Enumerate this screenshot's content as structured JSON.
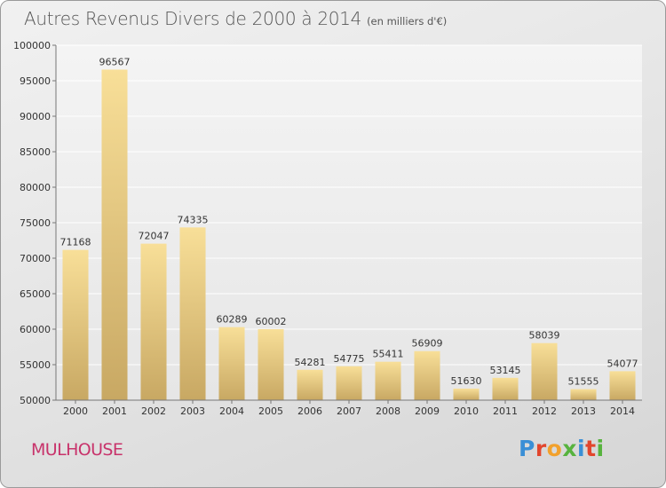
{
  "chart_data": {
    "type": "bar",
    "title": "Autres Revenus Divers de 2000 à 2014",
    "unit": "(en milliers d'€)",
    "categories": [
      "2000",
      "2001",
      "2002",
      "2003",
      "2004",
      "2005",
      "2006",
      "2007",
      "2008",
      "2009",
      "2010",
      "2011",
      "2012",
      "2013",
      "2014"
    ],
    "values": [
      71168,
      96567,
      72047,
      74335,
      60289,
      60002,
      54281,
      54775,
      55411,
      56909,
      51630,
      53145,
      58039,
      51555,
      54077
    ],
    "value_labels": [
      "71168",
      "96567",
      "72047",
      "74335",
      "60289",
      "60002",
      "54281",
      "54775",
      "55411",
      "56909",
      "51630",
      "53145",
      "58039",
      "51555",
      "54077"
    ],
    "ylim": [
      50000,
      100000
    ],
    "yticks": [
      50000,
      55000,
      60000,
      65000,
      70000,
      75000,
      80000,
      85000,
      90000,
      95000,
      100000
    ],
    "ytick_labels": [
      "50000",
      "55000",
      "60000",
      "65000",
      "70000",
      "75000",
      "80000",
      "85000",
      "90000",
      "95000",
      "100000"
    ],
    "grid": true,
    "bar_color": "#e6c87e"
  },
  "footer": {
    "city": "MULHOUSE",
    "logo_text": "Proxiti"
  }
}
